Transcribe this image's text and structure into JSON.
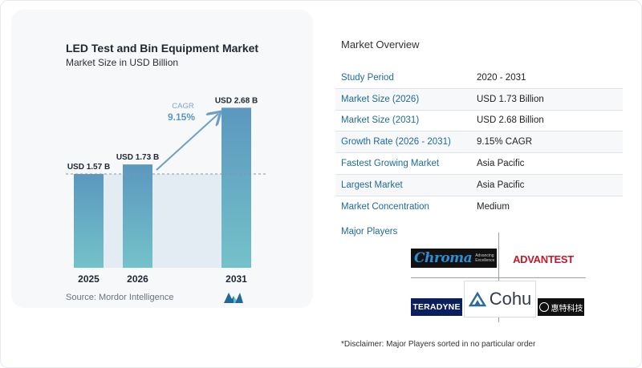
{
  "chart_data": {
    "type": "bar",
    "title": "LED Test and Bin Equipment Market",
    "subtitle": "Market Size in USD Billion",
    "categories": [
      "2025",
      "2026",
      "2031"
    ],
    "values": [
      1.57,
      1.73,
      2.68
    ],
    "value_labels": [
      "USD 1.57 B",
      "USD 1.73 B",
      "USD 2.68 B"
    ],
    "ylim": [
      0,
      2.9
    ],
    "grid": false,
    "annotation": {
      "label": "CAGR",
      "value": "9.15%"
    },
    "colors": {
      "bar_top": "#5b97bf",
      "bar_bottom": "#74c2c9",
      "arrow": "#6d9fc5",
      "band": "#e3ebf3"
    }
  },
  "source": {
    "label": "Source:",
    "text": "Mordor Intelligence"
  },
  "overview": {
    "title": "Market Overview",
    "rows": [
      {
        "key": "Study Period",
        "value": "2020 - 2031"
      },
      {
        "key": "Market Size (2026)",
        "value": "USD 1.73 Billion"
      },
      {
        "key": "Market Size (2031)",
        "value": "USD 2.68 Billion"
      },
      {
        "key": "Growth Rate (2026 - 2031)",
        "value": "9.15% CAGR"
      },
      {
        "key": "Fastest Growing Market",
        "value": "Asia Pacific"
      },
      {
        "key": "Largest Market",
        "value": "Asia Pacific"
      },
      {
        "key": "Market Concentration",
        "value": "Medium"
      }
    ]
  },
  "players": {
    "title": "Major Players",
    "logos": {
      "chroma": {
        "name": "Chroma",
        "tagline_1": "Advancing",
        "tagline_2": "Excellence"
      },
      "advantest": {
        "name": "ADVANTEST"
      },
      "teradyne": {
        "name": "TERADYNE"
      },
      "cohu": {
        "name": "Cohu"
      },
      "huite": {
        "name": "惠特科技"
      }
    }
  },
  "disclaimer": "*Disclaimer: Major Players sorted in no particular order"
}
